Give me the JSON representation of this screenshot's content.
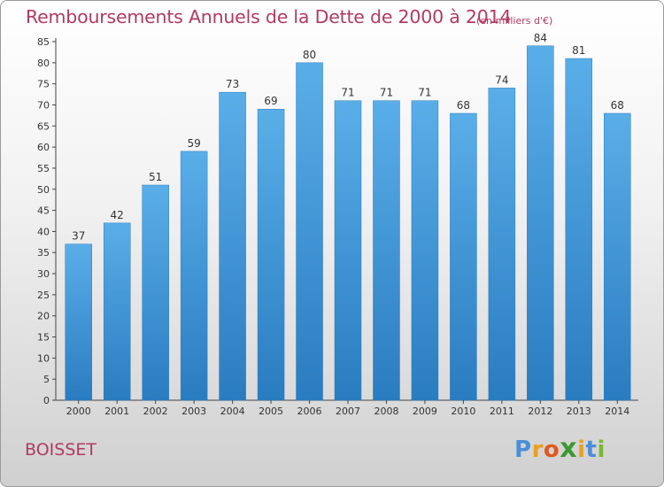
{
  "header": {
    "title": "Remboursements Annuels de la Dette de 2000 à 2014",
    "subtitle": "(en milliers d'€)"
  },
  "footer": {
    "commune": "BOISSET",
    "logo_letters": [
      "P",
      "r",
      "o",
      "x",
      "i",
      "t",
      "i"
    ]
  },
  "colors": {
    "bar_top": "#5aaee8",
    "bar_bottom": "#2a7cc0",
    "title": "#b03a63",
    "logo": [
      "#4a8fd8",
      "#e8a020",
      "#e05820",
      "#3a9a30",
      "#e8a020",
      "#4a8fd8",
      "#7ab830"
    ]
  },
  "chart_data": {
    "type": "bar",
    "title": "Remboursements Annuels de la Dette de 2000 à 2014",
    "unit": "(en milliers d'€)",
    "xlabel": "",
    "ylabel": "",
    "categories": [
      "2000",
      "2001",
      "2002",
      "2003",
      "2004",
      "2005",
      "2006",
      "2007",
      "2008",
      "2009",
      "2010",
      "2011",
      "2012",
      "2013",
      "2014"
    ],
    "values": [
      37,
      42,
      51,
      59,
      73,
      69,
      80,
      71,
      71,
      71,
      68,
      74,
      84,
      81,
      68
    ],
    "ylim": [
      0,
      85
    ],
    "yticks": [
      0,
      5,
      10,
      15,
      20,
      25,
      30,
      35,
      40,
      45,
      50,
      55,
      60,
      65,
      70,
      75,
      80,
      85
    ],
    "grid": false
  }
}
